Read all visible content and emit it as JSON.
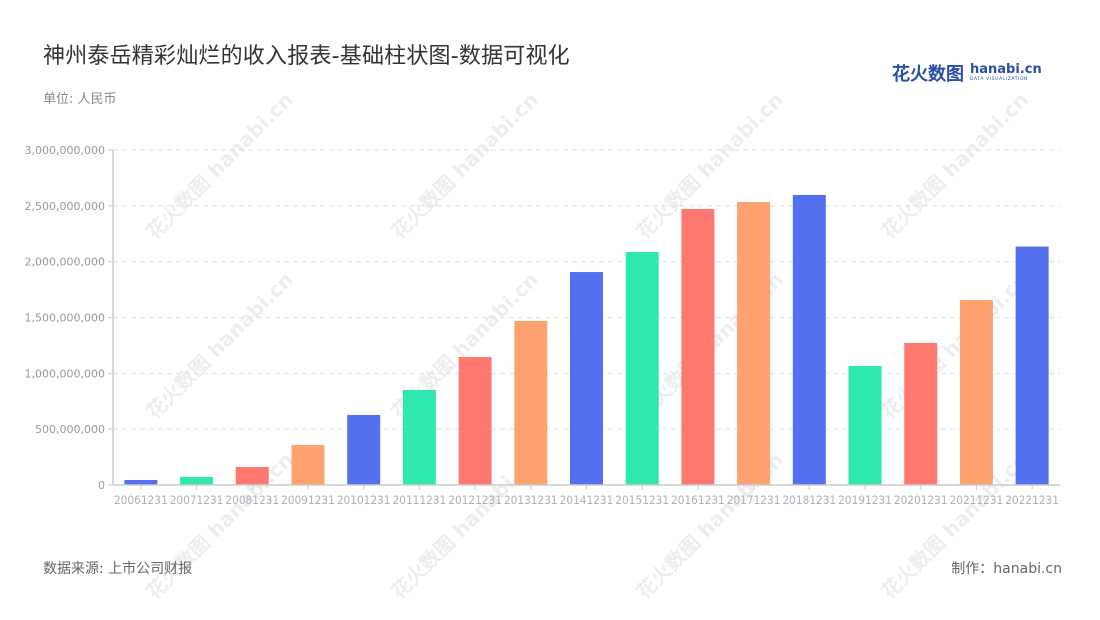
{
  "header": {
    "title": "神州泰岳精彩灿烂的收入报表-基础柱状图-数据可视化",
    "unit": "单位: 人民币"
  },
  "logo": {
    "cn": "花火数图",
    "en": "hanabi.cn",
    "tagline": "DATA VISUALIZATION"
  },
  "footer": {
    "source": "数据来源: 上市公司财报",
    "credit": "制作：hanabi.cn"
  },
  "watermark": "花火数图 hanabi.cn",
  "colors": {
    "palette": [
      "#5470ee",
      "#2ee8b0",
      "#ff7870",
      "#ffa270"
    ],
    "axis": "#cccccc",
    "grid": "#e0e0e0",
    "tick_label": "#999999"
  },
  "chart_data": {
    "type": "bar",
    "title": "神州泰岳精彩灿烂的收入报表-基础柱状图-数据可视化",
    "subtitle": "单位: 人民币",
    "xlabel": "",
    "ylabel": "",
    "ylim": [
      0,
      3000000000
    ],
    "yticks": [
      0,
      500000000,
      1000000000,
      1500000000,
      2000000000,
      2500000000,
      3000000000
    ],
    "ytick_labels": [
      "0",
      "500,000,000",
      "1,000,000,000",
      "1,500,000,000",
      "2,000,000,000",
      "2,500,000,000",
      "3,000,000,000"
    ],
    "grid": true,
    "legend": null,
    "categories": [
      "20061231",
      "20071231",
      "20081231",
      "20091231",
      "20101231",
      "20111231",
      "20121231",
      "20131231",
      "20141231",
      "20151231",
      "20161231",
      "20171231",
      "20181231",
      "20191231",
      "20201231",
      "20211231",
      "20221231"
    ],
    "values": [
      45000000,
      72000000,
      161000000,
      358000000,
      627000000,
      851000000,
      1146000000,
      1469000000,
      1907000000,
      2086000000,
      2472000000,
      2534000000,
      2597000000,
      1066000000,
      1272000000,
      1657000000,
      2135000000
    ]
  }
}
